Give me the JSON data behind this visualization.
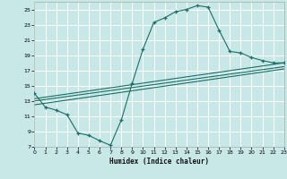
{
  "xlabel": "Humidex (Indice chaleur)",
  "bg_color": "#c8e8e8",
  "grid_color": "#ffffff",
  "line_color": "#1a6e65",
  "xlim": [
    0,
    23
  ],
  "ylim": [
    7,
    26
  ],
  "yticks": [
    7,
    9,
    11,
    13,
    15,
    17,
    19,
    21,
    23,
    25
  ],
  "xticks": [
    0,
    1,
    2,
    3,
    4,
    5,
    6,
    7,
    8,
    9,
    10,
    11,
    12,
    13,
    14,
    15,
    16,
    17,
    18,
    19,
    20,
    21,
    22,
    23
  ],
  "curve_x": [
    0,
    1,
    2,
    3,
    4,
    5,
    6,
    7,
    8,
    9,
    10,
    11,
    12,
    13,
    14,
    15,
    16,
    17,
    18,
    19,
    20,
    21,
    22,
    23
  ],
  "curve_y": [
    14.0,
    12.2,
    11.8,
    11.2,
    8.8,
    8.5,
    7.8,
    7.2,
    10.5,
    15.3,
    19.8,
    23.3,
    23.9,
    24.7,
    25.0,
    25.5,
    25.3,
    22.3,
    19.5,
    19.3,
    18.7,
    18.3,
    18.0,
    18.0
  ],
  "trend1_x": [
    0,
    23
  ],
  "trend1_y": [
    13.3,
    18.0
  ],
  "trend2_x": [
    0,
    23
  ],
  "trend2_y": [
    13.0,
    17.5
  ],
  "trend3_x": [
    0,
    23
  ],
  "trend3_y": [
    12.5,
    17.2
  ]
}
